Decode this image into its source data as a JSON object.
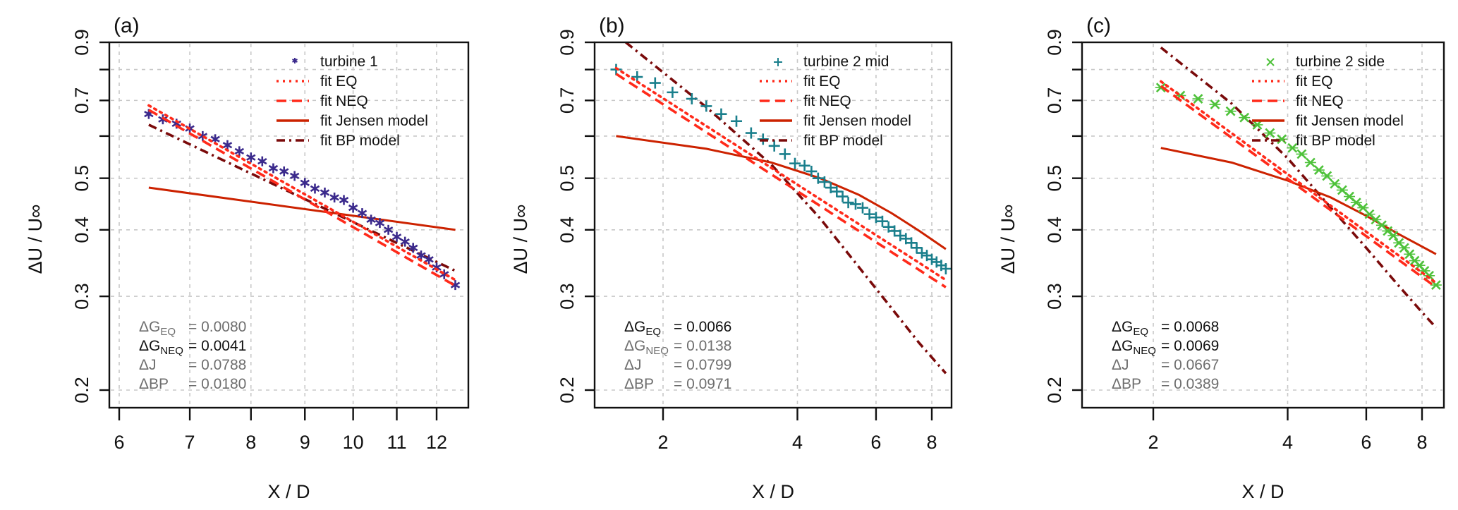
{
  "chart_data": [
    {
      "type": "line",
      "panel_label": "(a)",
      "title": "",
      "xlabel": "X / D",
      "ylabel": "ΔU / U∞",
      "xscale": "log",
      "yscale": "log",
      "xlim": [
        5.85,
        13.0
      ],
      "ylim": [
        0.19,
        0.9
      ],
      "xticks": [
        6,
        7,
        8,
        9,
        10,
        11,
        12
      ],
      "yticks": [
        0.2,
        0.3,
        0.4,
        0.5,
        0.7,
        0.9
      ],
      "ytick_labels": [
        "0.2",
        "0.3",
        "0.4",
        "0.5",
        "0.7",
        "0.9"
      ],
      "grid": true,
      "legend_position": "top-right",
      "marker_color": "#3b2a8c",
      "marker": "star",
      "series": [
        {
          "name": "turbine 1",
          "kind": "points",
          "color": "#3b2a8c",
          "x": [
            6.4,
            6.6,
            6.8,
            7.0,
            7.2,
            7.4,
            7.6,
            7.8,
            8.0,
            8.2,
            8.4,
            8.6,
            8.8,
            9.0,
            9.2,
            9.4,
            9.6,
            9.8,
            10.0,
            10.2,
            10.4,
            10.6,
            10.8,
            11.0,
            11.2,
            11.4,
            11.6,
            11.8,
            12.0,
            12.2,
            12.5
          ],
          "y": [
            0.66,
            0.645,
            0.633,
            0.62,
            0.6,
            0.592,
            0.577,
            0.562,
            0.547,
            0.538,
            0.522,
            0.515,
            0.505,
            0.49,
            0.478,
            0.47,
            0.46,
            0.455,
            0.44,
            0.43,
            0.418,
            0.412,
            0.4,
            0.388,
            0.38,
            0.37,
            0.358,
            0.352,
            0.34,
            0.33,
            0.315
          ]
        },
        {
          "name": "fit  EQ",
          "kind": "line",
          "style": "dotted",
          "color": "#ff2a1a",
          "x": [
            6.4,
            12.5
          ],
          "y": [
            0.685,
            0.322
          ]
        },
        {
          "name": "fit  NEQ",
          "kind": "line",
          "style": "dashed",
          "color": "#ff2a1a",
          "x": [
            6.4,
            12.5
          ],
          "y": [
            0.672,
            0.314
          ]
        },
        {
          "name": "fit Jensen model",
          "kind": "line",
          "style": "solid",
          "color": "#cc2200",
          "x": [
            6.4,
            12.5
          ],
          "y": [
            0.48,
            0.4
          ]
        },
        {
          "name": "fit BP model",
          "kind": "line",
          "style": "dashdot",
          "color": "#7a0a0a",
          "x": [
            6.4,
            12.5
          ],
          "y": [
            0.63,
            0.335
          ]
        }
      ],
      "stats": [
        {
          "label": "ΔG",
          "sub": "EQ",
          "value": "= 0.0080",
          "highlight": false
        },
        {
          "label": "ΔG",
          "sub": "NEQ",
          "value": "= 0.0041",
          "highlight": true
        },
        {
          "label": "ΔJ",
          "sub": "",
          "value": "= 0.0788",
          "highlight": false
        },
        {
          "label": "ΔBP",
          "sub": "",
          "value": "= 0.0180",
          "highlight": false
        }
      ]
    },
    {
      "type": "line",
      "panel_label": "(b)",
      "title": "",
      "xlabel": "X / D",
      "ylabel": "ΔU / U∞",
      "xscale": "log",
      "yscale": "log",
      "xlim": [
        1.45,
        9.2
      ],
      "ylim": [
        0.19,
        0.9
      ],
      "xticks": [
        2,
        4,
        6,
        8
      ],
      "yticks": [
        0.2,
        0.3,
        0.4,
        0.5,
        0.7,
        0.9
      ],
      "ytick_labels": [
        "0.2",
        "0.3",
        "0.4",
        "0.5",
        "0.7",
        "0.9"
      ],
      "grid": true,
      "legend_position": "top-right",
      "marker": "plus",
      "series": [
        {
          "name": "turbine 2 mid",
          "kind": "points",
          "color": "#1a7f8c",
          "x": [
            1.57,
            1.75,
            1.92,
            2.1,
            2.32,
            2.5,
            2.7,
            2.92,
            3.15,
            3.35,
            3.55,
            3.75,
            3.95,
            4.15,
            4.3,
            4.45,
            4.6,
            4.75,
            4.9,
            5.05,
            5.2,
            5.4,
            5.6,
            5.8,
            6.0,
            6.2,
            6.4,
            6.6,
            6.8,
            7.0,
            7.2,
            7.4,
            7.6,
            7.8,
            8.0,
            8.2,
            8.4,
            8.6
          ],
          "y": [
            0.8,
            0.775,
            0.755,
            0.725,
            0.705,
            0.683,
            0.66,
            0.64,
            0.608,
            0.592,
            0.575,
            0.555,
            0.533,
            0.528,
            0.515,
            0.5,
            0.492,
            0.48,
            0.472,
            0.462,
            0.45,
            0.447,
            0.44,
            0.428,
            0.422,
            0.415,
            0.405,
            0.398,
            0.39,
            0.385,
            0.378,
            0.37,
            0.362,
            0.358,
            0.352,
            0.348,
            0.343,
            0.338
          ]
        },
        {
          "name": "fit  EQ",
          "kind": "line",
          "style": "dotted",
          "color": "#ff2a1a",
          "x": [
            1.57,
            8.6
          ],
          "y": [
            0.805,
            0.322
          ]
        },
        {
          "name": "fit  NEQ",
          "kind": "line",
          "style": "dashed",
          "color": "#ff2a1a",
          "x": [
            1.57,
            8.6
          ],
          "y": [
            0.785,
            0.312
          ]
        },
        {
          "name": "fit Jensen model",
          "kind": "line",
          "style": "solid",
          "color": "#cc2200",
          "x": [
            1.57,
            2.5,
            3.5,
            4.5,
            5.5,
            6.5,
            7.5,
            8.6
          ],
          "y": [
            0.6,
            0.568,
            0.535,
            0.5,
            0.465,
            0.43,
            0.398,
            0.368
          ]
        },
        {
          "name": "fit BP model",
          "kind": "line",
          "style": "dashdot",
          "color": "#7a0a0a",
          "x": [
            1.65,
            2.5,
            3.5,
            4.5,
            5.5,
            6.5,
            7.5,
            8.6
          ],
          "y": [
            0.9,
            0.68,
            0.53,
            0.42,
            0.34,
            0.285,
            0.245,
            0.215
          ]
        }
      ],
      "stats": [
        {
          "label": "ΔG",
          "sub": "EQ",
          "value": "= 0.0066",
          "highlight": true
        },
        {
          "label": "ΔG",
          "sub": "NEQ",
          "value": "= 0.0138",
          "highlight": false
        },
        {
          "label": "ΔJ",
          "sub": "",
          "value": "= 0.0799",
          "highlight": false
        },
        {
          "label": "ΔBP",
          "sub": "",
          "value": "= 0.0971",
          "highlight": false
        }
      ]
    },
    {
      "type": "line",
      "panel_label": "(c)",
      "title": "",
      "xlabel": "X / D",
      "ylabel": "ΔU / U∞",
      "xscale": "log",
      "yscale": "log",
      "xlim": [
        1.45,
        9.2
      ],
      "ylim": [
        0.19,
        0.9
      ],
      "xticks": [
        2,
        4,
        6,
        8
      ],
      "yticks": [
        0.2,
        0.3,
        0.4,
        0.5,
        0.7,
        0.9
      ],
      "ytick_labels": [
        "0.2",
        "0.3",
        "0.4",
        "0.5",
        "0.7",
        "0.9"
      ],
      "grid": true,
      "legend_position": "top-right",
      "marker": "x",
      "series": [
        {
          "name": "turbine 2 side",
          "kind": "points",
          "color": "#4ec23a",
          "x": [
            2.08,
            2.3,
            2.52,
            2.75,
            2.98,
            3.2,
            3.42,
            3.65,
            3.88,
            4.1,
            4.3,
            4.5,
            4.7,
            4.9,
            5.1,
            5.3,
            5.5,
            5.7,
            5.9,
            6.1,
            6.3,
            6.5,
            6.7,
            6.9,
            7.1,
            7.3,
            7.5,
            7.7,
            7.9,
            8.1,
            8.3,
            8.6
          ],
          "y": [
            0.74,
            0.715,
            0.705,
            0.688,
            0.668,
            0.65,
            0.63,
            0.608,
            0.592,
            0.57,
            0.555,
            0.535,
            0.518,
            0.505,
            0.488,
            0.475,
            0.462,
            0.45,
            0.44,
            0.428,
            0.418,
            0.408,
            0.398,
            0.39,
            0.378,
            0.37,
            0.36,
            0.35,
            0.343,
            0.335,
            0.328,
            0.315
          ]
        },
        {
          "name": "fit  EQ",
          "kind": "line",
          "style": "dotted",
          "color": "#ff2a1a",
          "x": [
            2.08,
            8.6
          ],
          "y": [
            0.76,
            0.318
          ]
        },
        {
          "name": "fit  NEQ",
          "kind": "line",
          "style": "dashed",
          "color": "#ff2a1a",
          "x": [
            2.08,
            8.6
          ],
          "y": [
            0.745,
            0.312
          ]
        },
        {
          "name": "fit Jensen model",
          "kind": "line",
          "style": "solid",
          "color": "#cc2200",
          "x": [
            2.08,
            3.0,
            4.0,
            5.0,
            6.0,
            7.0,
            8.0,
            8.6
          ],
          "y": [
            0.57,
            0.535,
            0.495,
            0.46,
            0.425,
            0.395,
            0.372,
            0.36
          ]
        },
        {
          "name": "fit BP model",
          "kind": "line",
          "style": "dashdot",
          "color": "#7a0a0a",
          "x": [
            2.08,
            3.0,
            4.0,
            5.0,
            6.0,
            7.0,
            8.0,
            8.6
          ],
          "y": [
            0.88,
            0.69,
            0.545,
            0.44,
            0.37,
            0.318,
            0.28,
            0.262
          ]
        }
      ],
      "stats": [
        {
          "label": "ΔG",
          "sub": "EQ",
          "value": "= 0.0068",
          "highlight": true
        },
        {
          "label": "ΔG",
          "sub": "NEQ",
          "value": "= 0.0069",
          "highlight": true
        },
        {
          "label": "ΔJ",
          "sub": "",
          "value": "= 0.0667",
          "highlight": false
        },
        {
          "label": "ΔBP",
          "sub": "",
          "value": "= 0.0389",
          "highlight": false
        }
      ]
    }
  ],
  "colors": {
    "highlight_text": "#111111",
    "muted_text": "#6e6e6e",
    "grid": "#c8c8c8",
    "frame": "#111111"
  }
}
